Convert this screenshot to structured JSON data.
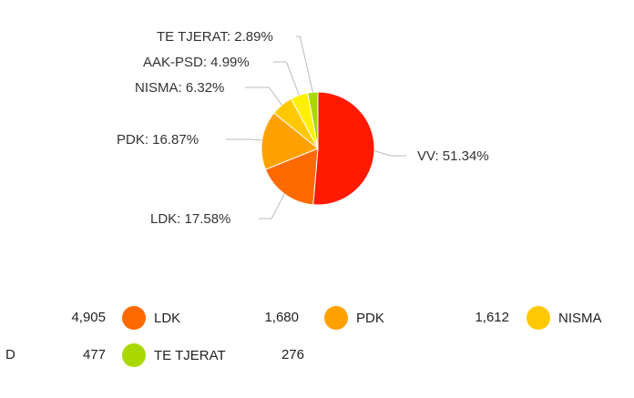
{
  "chart_data": {
    "type": "pie",
    "slices": [
      {
        "name": "VV",
        "label": "VV: 51.34%",
        "value": 51.34,
        "color": "#ff1a00"
      },
      {
        "name": "LDK",
        "label": "LDK: 17.58%",
        "value": 17.58,
        "color": "#ff6a00"
      },
      {
        "name": "PDK",
        "label": "PDK: 16.87%",
        "value": 16.87,
        "color": "#ffa100"
      },
      {
        "name": "NISMA",
        "label": "NISMA: 6.32%",
        "value": 6.32,
        "color": "#ffc800"
      },
      {
        "name": "AAK-PSD",
        "label": "AAK-PSD: 4.99%",
        "value": 4.99,
        "color": "#fff000"
      },
      {
        "name": "TE TJERAT",
        "label": "TE TJERAT: 2.89%",
        "value": 2.89,
        "color": "#a8d800"
      }
    ]
  },
  "legend": {
    "row1": [
      {
        "value": "4,905",
        "name": "LDK",
        "color": "#ff6a00"
      },
      {
        "value": "1,680",
        "name": "PDK",
        "color": "#ffa100"
      },
      {
        "value": "1,612",
        "name": "NISMA",
        "color": "#ffc800"
      }
    ],
    "row2_prefix": "D",
    "row2": [
      {
        "value": "477",
        "name": "TE TJERAT",
        "color": "#a8d800"
      },
      {
        "value": "276"
      }
    ]
  }
}
